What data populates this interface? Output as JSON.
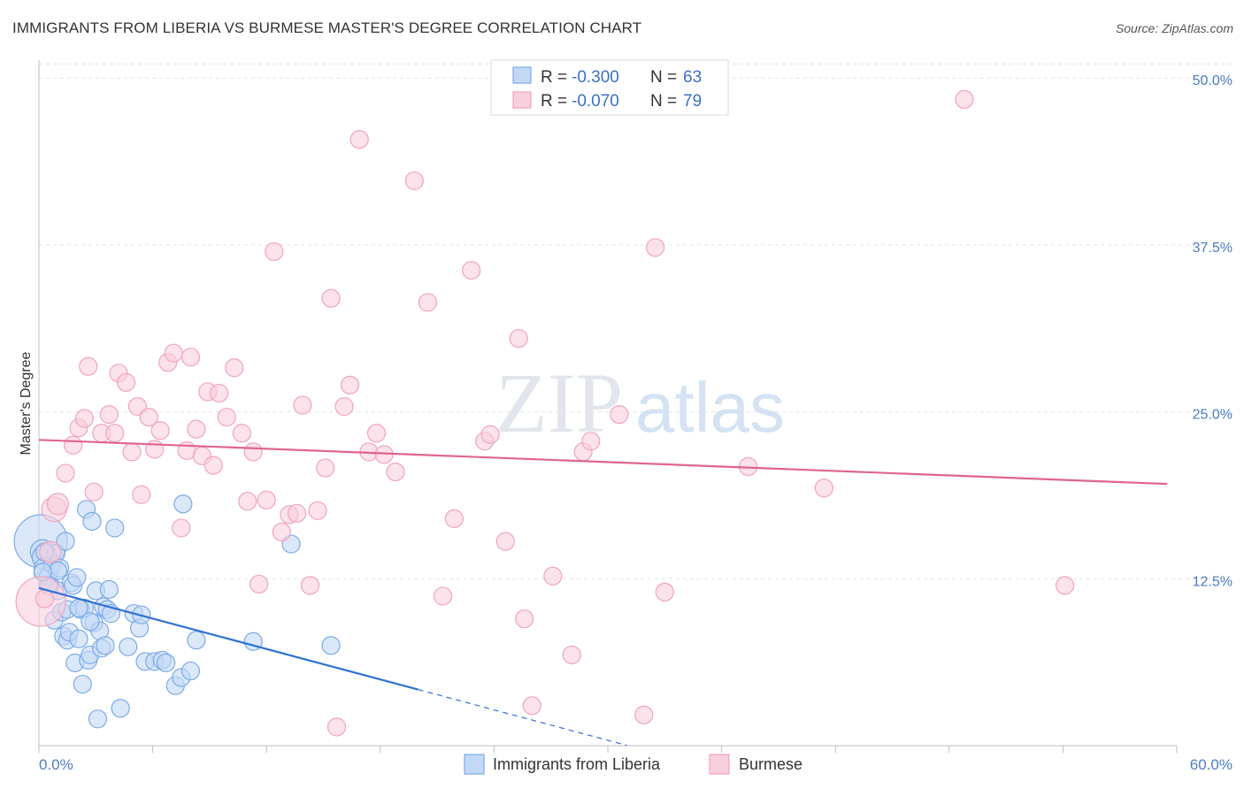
{
  "title": "IMMIGRANTS FROM LIBERIA VS BURMESE MASTER'S DEGREE CORRELATION CHART",
  "source": "Source: ZipAtlas.com",
  "chart_data": {
    "type": "scatter",
    "title": "IMMIGRANTS FROM LIBERIA VS BURMESE MASTER'S DEGREE CORRELATION CHART",
    "xlabel": "",
    "ylabel": "Master's Degree",
    "xlim": [
      0,
      60
    ],
    "ylim": [
      0,
      52
    ],
    "x_tick_labels": [
      "0.0%",
      "60.0%"
    ],
    "y_ticks": [
      12.5,
      25.0,
      37.5,
      50.0
    ],
    "y_tick_labels": [
      "12.5%",
      "25.0%",
      "37.5%",
      "50.0%"
    ],
    "grid": true,
    "watermark": "ZIPatlas",
    "legend": {
      "r_label": "R =",
      "n_label": "N =",
      "entries": [
        {
          "name": "Immigrants from Liberia",
          "r": "-0.300",
          "n": "63"
        },
        {
          "name": "Burmese",
          "r": "-0.070",
          "n": "79"
        }
      ]
    },
    "series": [
      {
        "name": "Immigrants from Liberia",
        "color": "#7aaae8",
        "fill": "#c3d8f5",
        "line_color": "#2f72d0",
        "trend": {
          "x0": 0.0,
          "y0": 11.8,
          "x1": 20.0,
          "y1": 4.2,
          "dash_to_x": 31.0
        },
        "points": [
          [
            0.1,
            15.3
          ],
          [
            0.2,
            14.5
          ],
          [
            0.3,
            14.1
          ],
          [
            0.4,
            13.2
          ],
          [
            0.5,
            12.7
          ],
          [
            0.6,
            12.0
          ],
          [
            0.7,
            13.6
          ],
          [
            0.8,
            9.4
          ],
          [
            0.9,
            14.4
          ],
          [
            1.0,
            11.6
          ],
          [
            1.1,
            13.3
          ],
          [
            1.2,
            10.0
          ],
          [
            1.3,
            8.2
          ],
          [
            1.4,
            15.3
          ],
          [
            1.5,
            7.9
          ],
          [
            1.6,
            8.5
          ],
          [
            1.7,
            12.2
          ],
          [
            1.8,
            12.0
          ],
          [
            1.9,
            6.2
          ],
          [
            2.0,
            12.6
          ],
          [
            2.1,
            8.0
          ],
          [
            2.2,
            10.2
          ],
          [
            2.3,
            4.6
          ],
          [
            2.4,
            10.3
          ],
          [
            2.5,
            17.7
          ],
          [
            2.6,
            6.4
          ],
          [
            2.7,
            6.8
          ],
          [
            2.8,
            16.8
          ],
          [
            2.9,
            9.2
          ],
          [
            3.0,
            11.6
          ],
          [
            3.1,
            2.0
          ],
          [
            3.2,
            8.6
          ],
          [
            3.3,
            7.3
          ],
          [
            3.4,
            10.4
          ],
          [
            3.5,
            7.5
          ],
          [
            3.6,
            10.2
          ],
          [
            3.7,
            11.7
          ],
          [
            3.8,
            9.9
          ],
          [
            4.0,
            16.3
          ],
          [
            4.3,
            2.8
          ],
          [
            4.7,
            7.4
          ],
          [
            5.0,
            9.9
          ],
          [
            5.3,
            8.8
          ],
          [
            5.4,
            9.8
          ],
          [
            5.6,
            6.3
          ],
          [
            6.1,
            6.3
          ],
          [
            6.5,
            6.4
          ],
          [
            6.7,
            6.2
          ],
          [
            7.2,
            4.5
          ],
          [
            7.5,
            5.1
          ],
          [
            7.6,
            18.1
          ],
          [
            8.0,
            5.6
          ],
          [
            8.3,
            7.9
          ],
          [
            0.5,
            12.0
          ],
          [
            1.0,
            13.1
          ],
          [
            1.5,
            10.2
          ],
          [
            0.3,
            14.5
          ],
          [
            11.3,
            7.8
          ],
          [
            13.3,
            15.1
          ],
          [
            15.4,
            7.5
          ],
          [
            0.2,
            13.0
          ],
          [
            2.1,
            10.3
          ],
          [
            2.7,
            9.3
          ]
        ],
        "sizes": [
          30,
          14,
          14,
          14,
          10,
          10,
          10,
          10,
          10,
          10,
          10,
          10,
          10,
          10,
          10,
          10,
          10,
          10,
          10,
          10,
          10,
          10,
          10,
          10,
          10,
          10,
          10,
          10,
          10,
          10,
          10,
          10,
          10,
          10,
          10,
          10,
          10,
          10,
          10,
          10,
          10,
          10,
          10,
          10,
          10,
          10,
          10,
          10,
          10,
          10,
          10,
          10,
          10,
          10,
          10,
          10,
          10,
          10,
          10,
          10,
          10,
          10,
          10
        ]
      },
      {
        "name": "Burmese",
        "color": "#f2a3bd",
        "fill": "#f8cfdd",
        "line_color": "#e0648f",
        "trend": {
          "x0": 0.0,
          "y0": 22.9,
          "x1": 59.5,
          "y1": 19.6
        },
        "points": [
          [
            0.1,
            10.8
          ],
          [
            0.6,
            14.5
          ],
          [
            0.8,
            17.7
          ],
          [
            1.0,
            18.1
          ],
          [
            1.4,
            20.4
          ],
          [
            1.8,
            22.5
          ],
          [
            2.1,
            23.8
          ],
          [
            2.4,
            24.5
          ],
          [
            2.6,
            28.4
          ],
          [
            2.9,
            19.0
          ],
          [
            3.3,
            23.4
          ],
          [
            3.7,
            24.8
          ],
          [
            4.0,
            23.4
          ],
          [
            4.2,
            27.9
          ],
          [
            4.6,
            27.2
          ],
          [
            4.9,
            22.0
          ],
          [
            5.2,
            25.4
          ],
          [
            5.4,
            18.8
          ],
          [
            5.8,
            24.6
          ],
          [
            6.1,
            22.2
          ],
          [
            6.4,
            23.6
          ],
          [
            6.8,
            28.7
          ],
          [
            7.1,
            29.4
          ],
          [
            7.5,
            16.3
          ],
          [
            7.8,
            22.1
          ],
          [
            8.0,
            29.1
          ],
          [
            8.3,
            23.7
          ],
          [
            8.6,
            21.7
          ],
          [
            8.9,
            26.5
          ],
          [
            9.2,
            21.0
          ],
          [
            9.5,
            26.4
          ],
          [
            9.9,
            24.6
          ],
          [
            10.3,
            28.3
          ],
          [
            10.7,
            23.4
          ],
          [
            11.0,
            18.3
          ],
          [
            11.3,
            22.0
          ],
          [
            11.6,
            12.1
          ],
          [
            12.0,
            18.4
          ],
          [
            12.4,
            37.0
          ],
          [
            12.8,
            16.0
          ],
          [
            13.2,
            17.3
          ],
          [
            13.6,
            17.4
          ],
          [
            13.9,
            25.5
          ],
          [
            14.3,
            12.0
          ],
          [
            14.7,
            17.6
          ],
          [
            15.1,
            20.8
          ],
          [
            15.4,
            33.5
          ],
          [
            15.7,
            1.4
          ],
          [
            16.1,
            25.4
          ],
          [
            16.4,
            27.0
          ],
          [
            16.9,
            45.4
          ],
          [
            17.4,
            22.0
          ],
          [
            17.8,
            23.4
          ],
          [
            18.2,
            21.8
          ],
          [
            18.8,
            20.5
          ],
          [
            19.8,
            42.3
          ],
          [
            20.5,
            33.2
          ],
          [
            21.3,
            11.2
          ],
          [
            21.9,
            17.0
          ],
          [
            22.8,
            35.6
          ],
          [
            23.5,
            22.8
          ],
          [
            23.8,
            23.3
          ],
          [
            24.6,
            15.3
          ],
          [
            25.3,
            30.5
          ],
          [
            25.6,
            9.5
          ],
          [
            26.0,
            3.0
          ],
          [
            27.1,
            12.7
          ],
          [
            28.1,
            6.8
          ],
          [
            28.7,
            22.0
          ],
          [
            29.1,
            22.8
          ],
          [
            30.6,
            24.8
          ],
          [
            31.9,
            2.3
          ],
          [
            32.5,
            37.3
          ],
          [
            33.0,
            11.5
          ],
          [
            37.4,
            20.9
          ],
          [
            41.4,
            19.3
          ],
          [
            48.8,
            48.4
          ],
          [
            54.1,
            12.0
          ],
          [
            0.3,
            11.0
          ]
        ],
        "sizes": [
          28,
          12,
          14,
          12,
          10,
          10,
          10,
          10,
          10,
          10,
          10,
          10,
          10,
          10,
          10,
          10,
          10,
          10,
          10,
          10,
          10,
          10,
          10,
          10,
          10,
          10,
          10,
          10,
          10,
          10,
          10,
          10,
          10,
          10,
          10,
          10,
          10,
          10,
          10,
          10,
          10,
          10,
          10,
          10,
          10,
          10,
          10,
          10,
          10,
          10,
          10,
          10,
          10,
          10,
          10,
          10,
          10,
          10,
          10,
          10,
          10,
          10,
          10,
          10,
          10,
          10,
          10,
          10,
          10,
          10,
          10,
          10,
          10,
          10,
          10,
          10,
          10,
          10,
          10
        ]
      }
    ]
  }
}
